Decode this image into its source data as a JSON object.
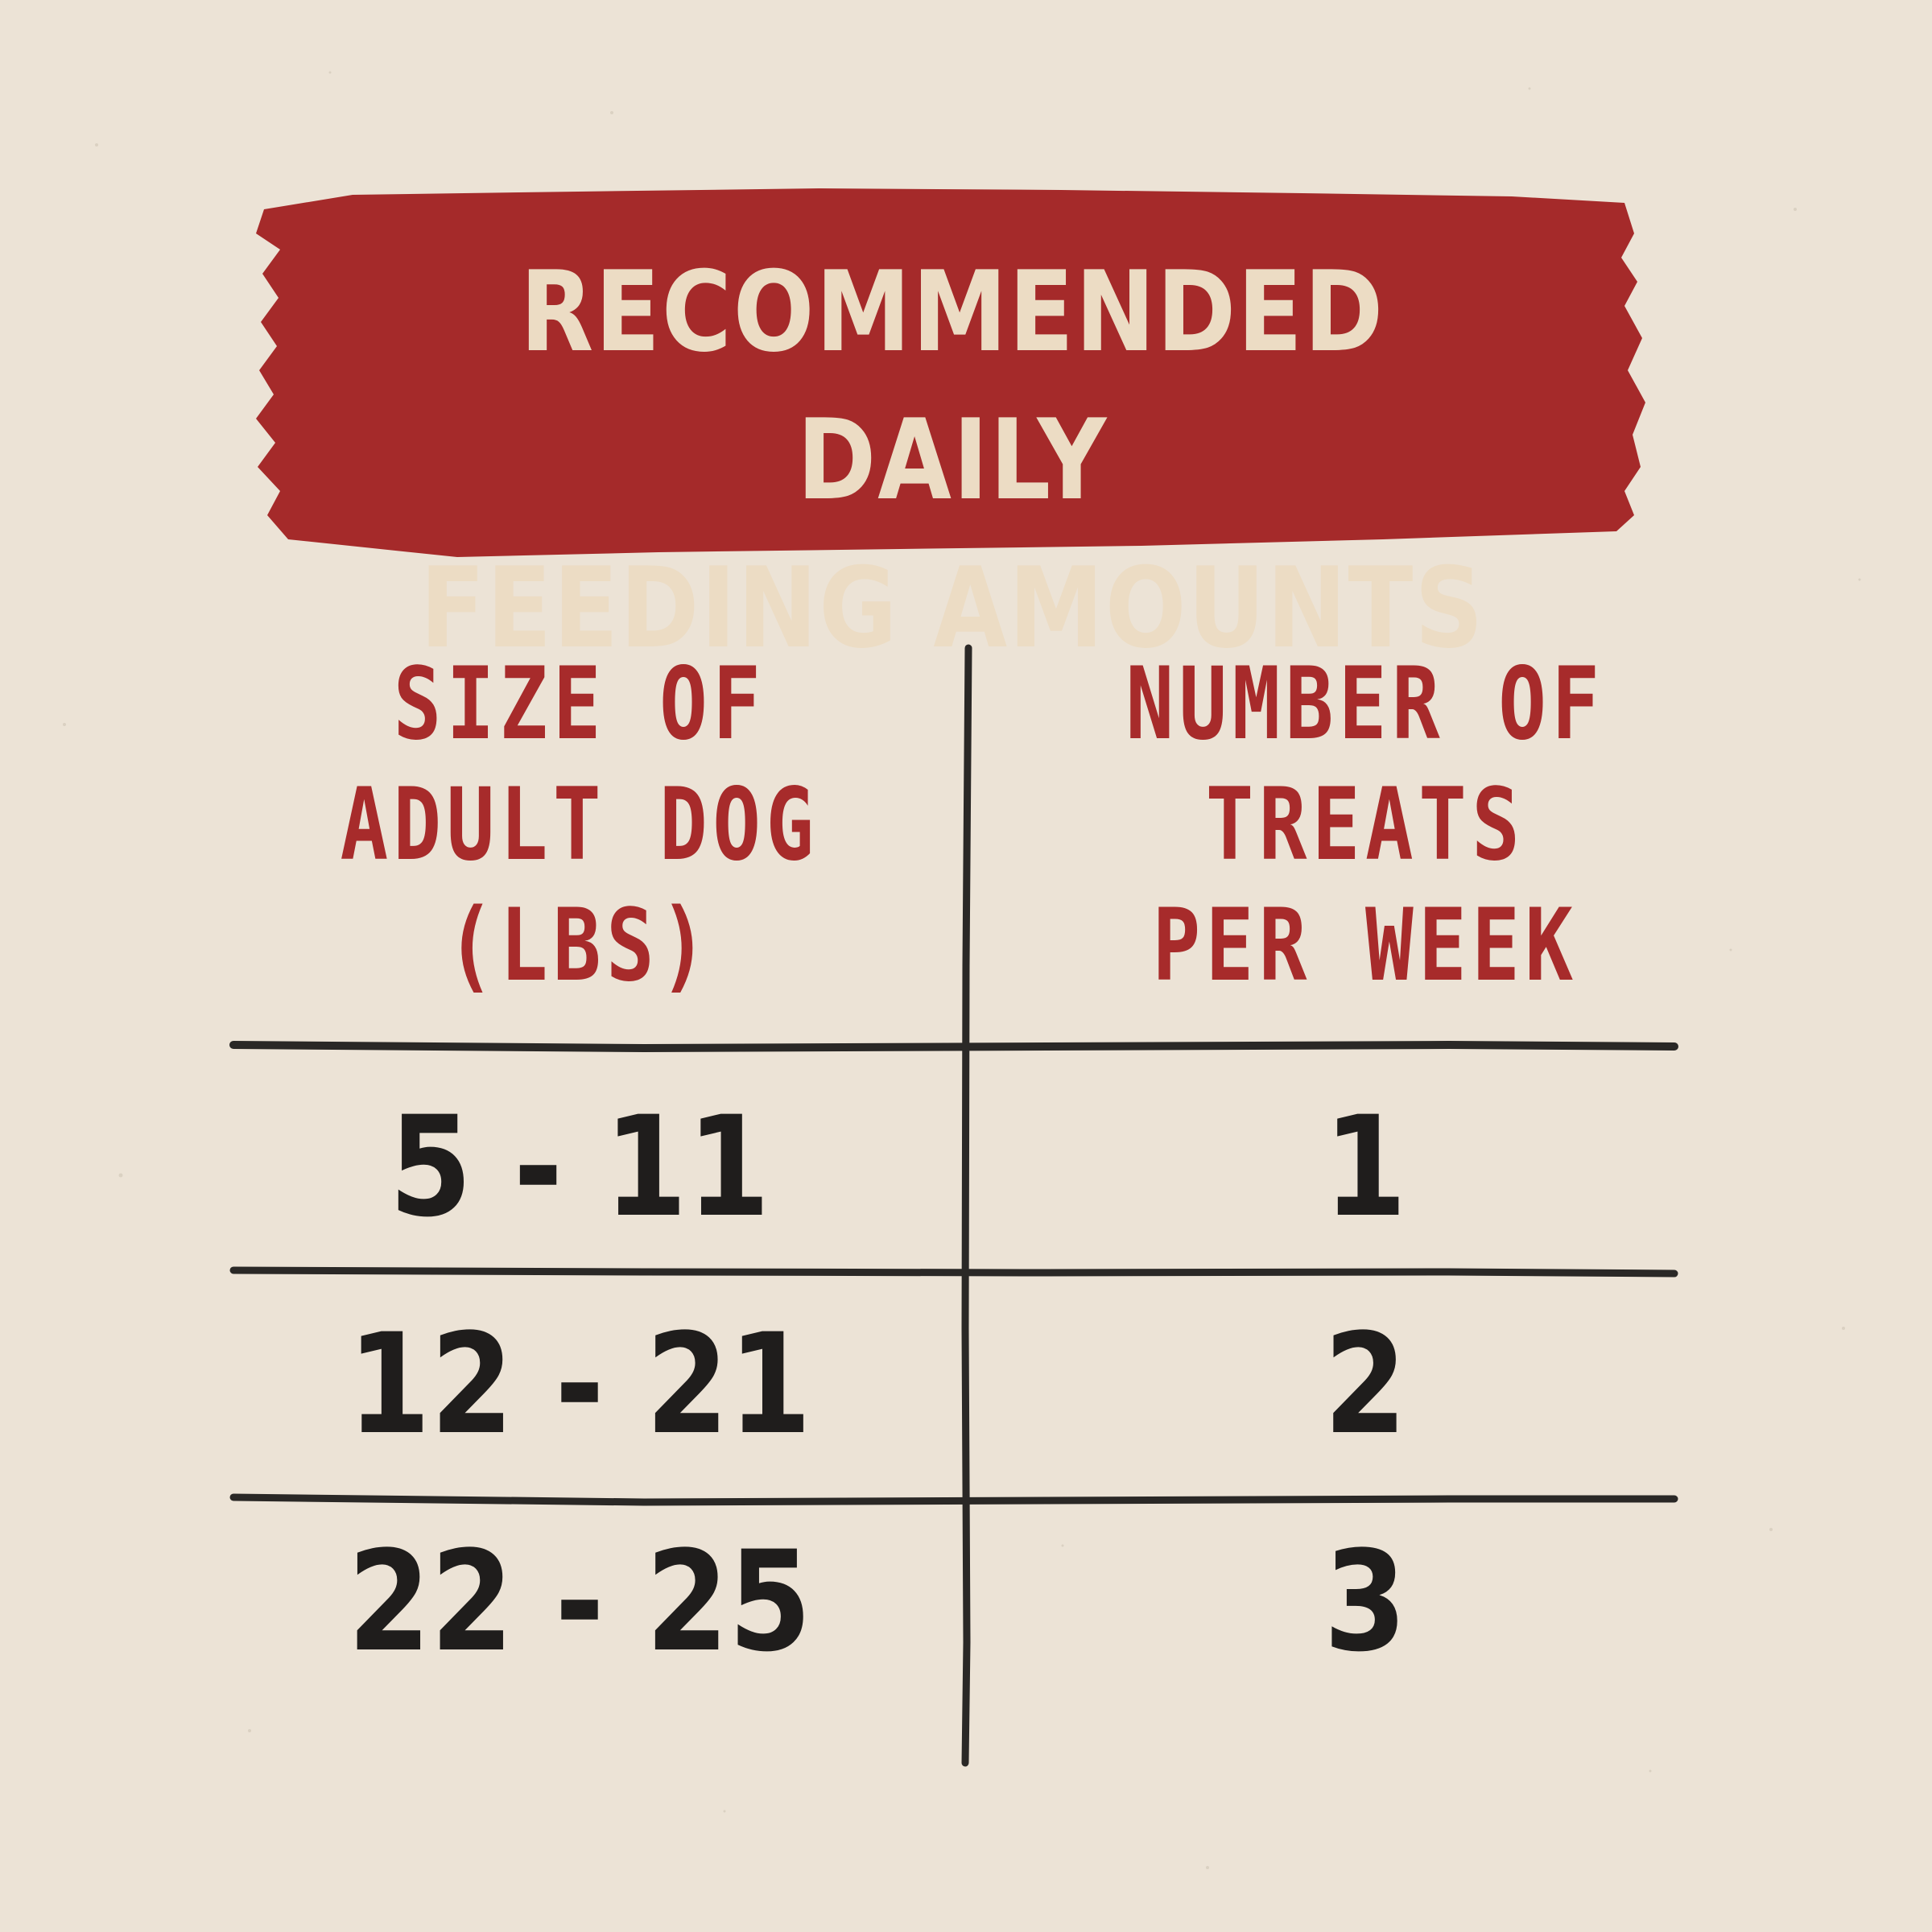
{
  "title": "RECOMMENDED DAILY\nFEEDING AMOUNTS",
  "table": {
    "headers": [
      "SIZE OF\nADULT DOG\n(LBS)",
      "NUMBER OF\nTREATS\nPER WEEK"
    ],
    "rows": [
      [
        "5 - 11",
        "1"
      ],
      [
        "12 - 21",
        "2"
      ],
      [
        "22 - 25",
        "3"
      ]
    ]
  },
  "colors": {
    "background": "#ece3d6",
    "banner": "#a52a2a",
    "banner_text": "#ecdcc4",
    "header_text": "#a72b2b",
    "cell_text": "#1f1d1c",
    "rule_lines": "#2a2826"
  }
}
